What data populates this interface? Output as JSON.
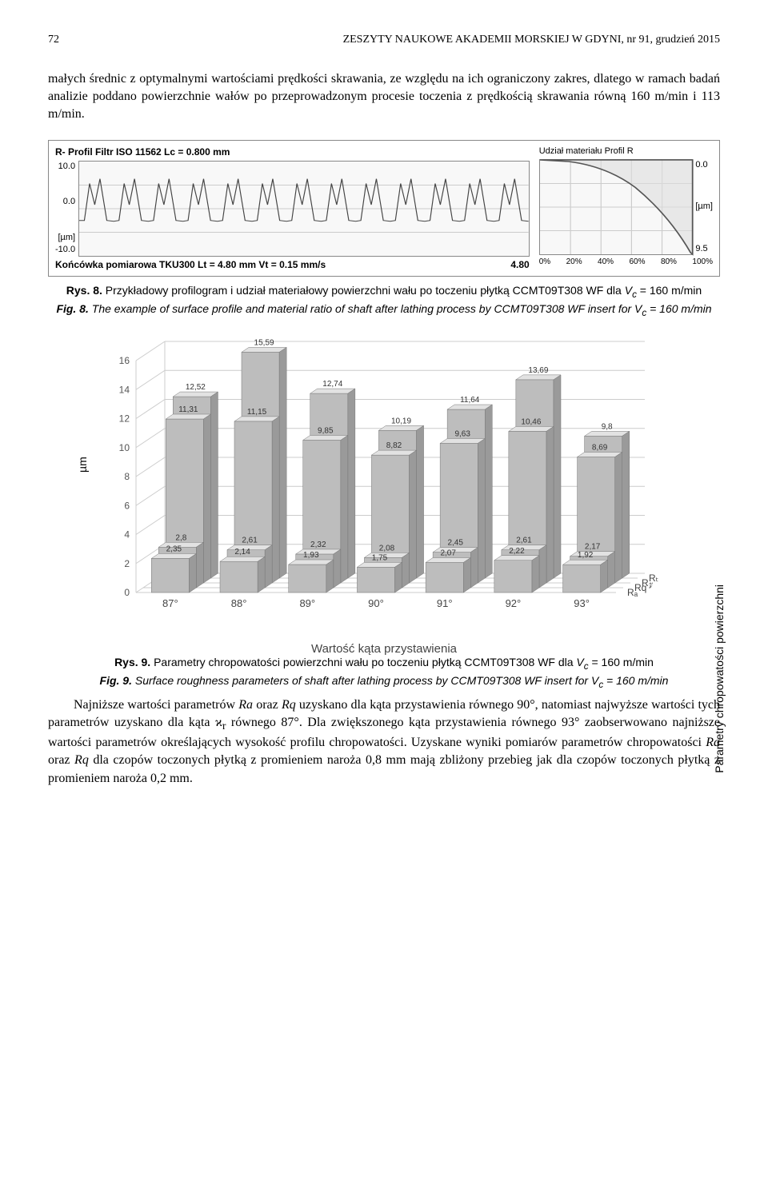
{
  "header": {
    "page_num": "72",
    "journal": "ZESZYTY NAUKOWE AKADEMII MORSKIEJ W GDYNI, nr 91, grudzień 2015"
  },
  "para1": "małych średnic z optymalnymi wartościami prędkości skrawania, ze względu na ich ograniczony zakres, dlatego w ramach badań analizie poddano powierzchnie wałów po przeprowadzonym procesie toczenia z prędkością skrawania równą 160 m/min i 113 m/min.",
  "profile": {
    "top_label": "R-  Profil  Filtr  ISO 11562  Lc = 0.800  mm",
    "y_ticks": [
      "10.0",
      "0.0",
      "-10.0"
    ],
    "y_unit": "[µm]",
    "bottom_label": "Końcówka pomiarowa TKU300    Lt = 4.80  mm    Vt = 0.15  mm/s",
    "bottom_right": "4.80",
    "grid_color": "#cccccc",
    "wave_color": "#444444",
    "background": "#f8f8f8"
  },
  "material": {
    "title": "Udział materiału  Profil R",
    "y_top": "0.0",
    "y_unit": "[µm]",
    "y_bottom": "9.5",
    "x_ticks": [
      "0%",
      "20%",
      "40%",
      "60%",
      "80%",
      "100%"
    ],
    "curve_color": "#555555"
  },
  "fig8": {
    "caption_pl_bold": "Rys. 8.",
    "caption_pl": " Przykładowy profilogram i udział materiałowy powierzchni wału po toczeniu płytką CCMT09T308 WF dla ",
    "caption_pl_var": "V",
    "caption_pl_sub": "c",
    "caption_pl_rest": " = 160 m/min",
    "caption_en_bold": "Fig. 8.",
    "caption_en": " The example of surface profile and material ratio of shaft after lathing process by CCMT09T308 WF insert for V",
    "caption_en_sub": "c",
    "caption_en_rest": " = 160 m/min"
  },
  "bar_chart": {
    "y_label": "µm",
    "y2_label": "Parametry chropowatości powierzchni",
    "x_title": "Wartość kąta przystawienia",
    "y_ticks": [
      0,
      2,
      4,
      6,
      8,
      10,
      12,
      14,
      16
    ],
    "categories": [
      "87°",
      "88°",
      "89°",
      "90°",
      "91°",
      "92°",
      "93°"
    ],
    "series_labels": [
      "Rₐ",
      "R_q",
      "R_z",
      "Rₜ"
    ],
    "row_Ra": [
      2.35,
      2.14,
      1.93,
      1.75,
      2.07,
      2.22,
      1.92
    ],
    "row_Rq": [
      2.8,
      2.61,
      2.32,
      2.08,
      2.45,
      2.61,
      2.17
    ],
    "row_Rz": [
      11.31,
      11.15,
      9.85,
      8.82,
      9.63,
      10.46,
      8.69
    ],
    "row_Rt": [
      12.52,
      15.59,
      12.74,
      10.19,
      11.64,
      13.69,
      9.8
    ],
    "bar_front_color": "#bdbdbd",
    "bar_top_color": "#e2e2e2",
    "bar_side_color": "#9a9a9a",
    "label_fontsize": 10,
    "grid_color": "#cccccc",
    "ymax": 16
  },
  "fig9": {
    "caption_pl_bold": "Rys. 9.",
    "caption_pl": " Parametry chropowatości powierzchni wału po toczeniu płytką CCMT09T308 WF dla ",
    "caption_pl_var": "V",
    "caption_pl_sub": "c",
    "caption_pl_rest": " = 160 m/min",
    "caption_en_bold": "Fig. 9.",
    "caption_en": " Surface roughness parameters  of shaft after lathing process by CCMT09T308 WF insert for V",
    "caption_en_sub": "c",
    "caption_en_rest": " = 160 m/min"
  },
  "para2_a": "Najniższe wartości parametrów ",
  "para2_ra": "Ra",
  "para2_b": " oraz ",
  "para2_rq": "Rq",
  "para2_c": " uzyskano dla kąta przystawienia równego 90°, natomiast najwyższe wartości tych parametrów uzyskano dla kąta ϰ",
  "para2_sub": "r",
  "para2_d": " równego 87°. Dla zwiększonego kąta przystawienia równego 93° zaobserwowano najniższe wartości parametrów określających wysokość profilu chropowatości. Uzyskane wyniki pomiarów parametrów chropowatości ",
  "para2_ra2": "Ra",
  "para2_e": " oraz ",
  "para2_rq2": "Rq",
  "para2_f": " dla czopów toczonych płytką z promieniem naroża 0,8 mm mają zbliżony przebieg jak dla czopów toczonych płytką z promieniem naroża 0,2 mm."
}
